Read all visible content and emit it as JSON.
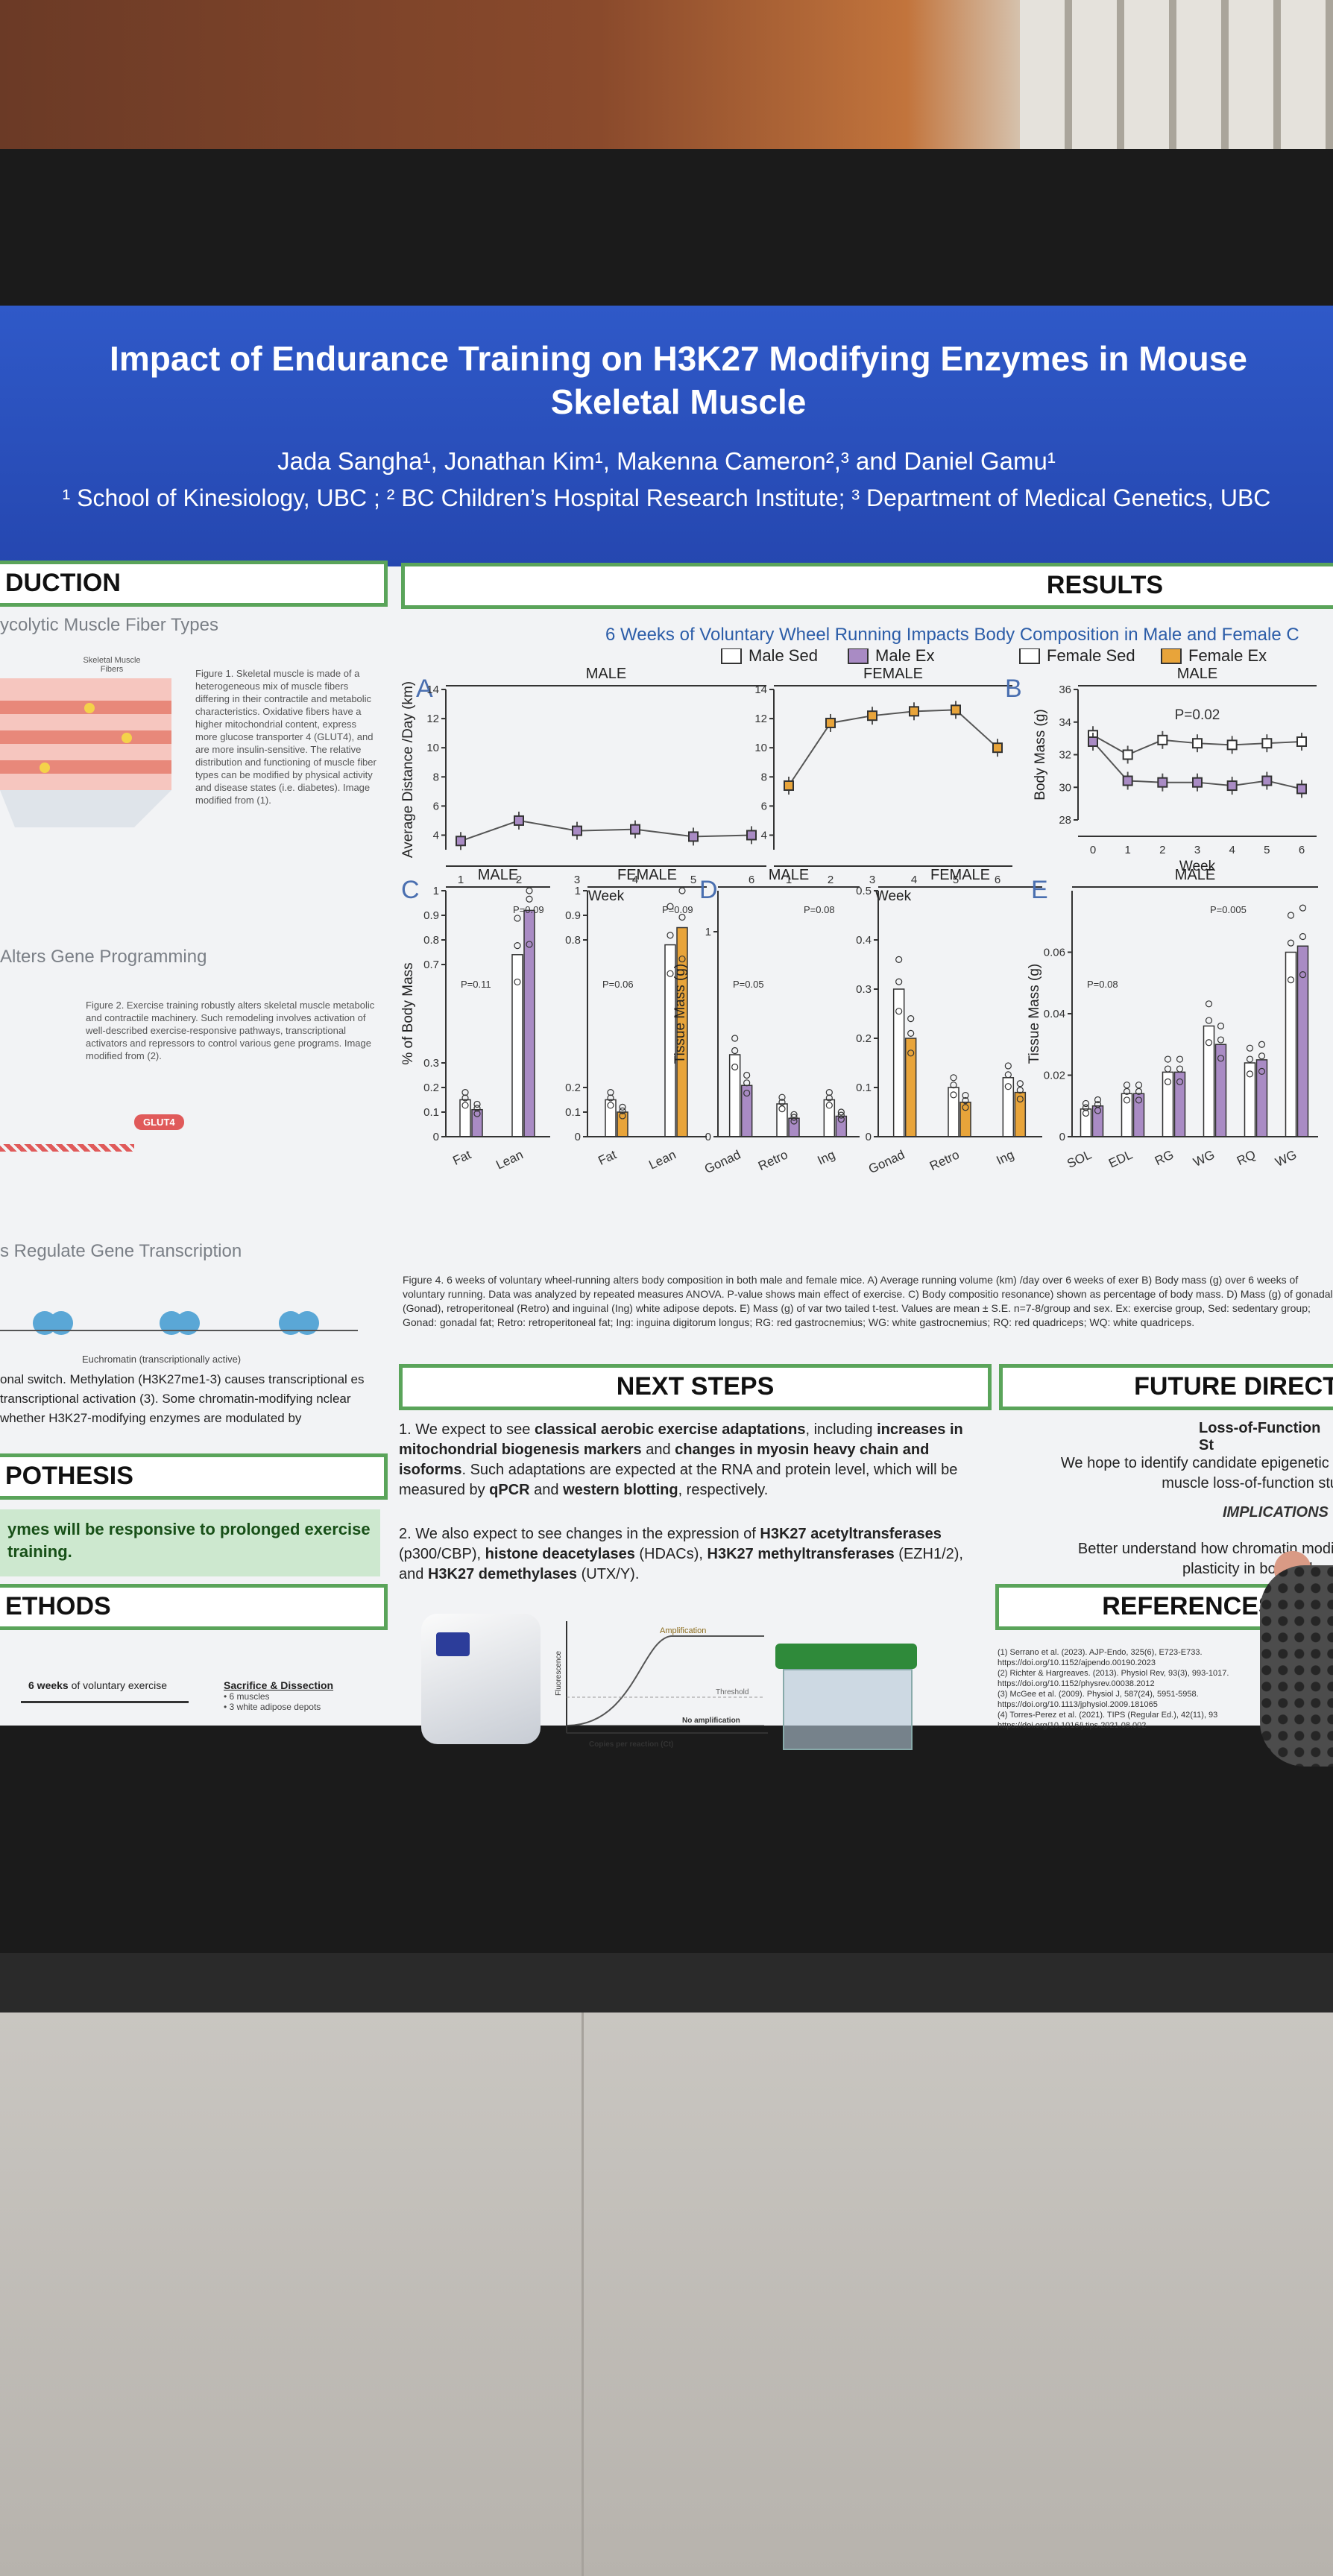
{
  "poster": {
    "title_line1": "Impact of Endurance Training on H3K27 Modifying Enzymes in Mouse",
    "title_line2": "Skeletal Muscle",
    "authors": "Jada Sangha¹, Jonathan Kim¹, Makenna Cameron²,³ and Daniel Gamu¹",
    "affiliations": "¹ School of Kinesiology, UBC ; ² BC Children’s Hospital Research Institute; ³ Department of Medical Genetics, UBC"
  },
  "intro": {
    "heading": "DUCTION",
    "sub1": "ycolytic Muscle Fiber Types",
    "fig1_caption": "Figure 1. Skeletal muscle is made of a heterogeneous mix of muscle fibers differing in their contractile and metabolic characteristics. Oxidative fibers have a higher mitochondrial content, express more glucose transporter 4 (GLUT4), and are more insulin-sensitive. The relative distribution and functioning of muscle fiber types can be modified by physical activity and disease states (i.e. diabetes). Image modified from (1).",
    "fig1_label": "Skeletal Muscle Fibers",
    "sub2": "Alters Gene Programming",
    "fig2_caption": "Figure 2. Exercise training robustly alters skeletal muscle metabolic and contractile machinery. Such remodeling involves activation of well-described exercise-responsive pathways, transcriptional activators and repressors to control various gene programs. Image modified from (2).",
    "glut4": "GLUT4",
    "sub3": "s Regulate Gene Transcription",
    "euchromatin": "Euchromatin (transcriptionally active)",
    "para": "onal switch. Methylation (H3K27me1-3) causes transcriptional es transcriptional activation (3). Some chromatin-modifying nclear whether H3K27-modifying enzymes are modulated by"
  },
  "hypothesis": {
    "heading": "POTHESIS",
    "text_line1": "ymes will be responsive to prolonged exercise",
    "text_line2": "training."
  },
  "methods": {
    "heading": "ETHODS",
    "step1_bold": "6 weeks",
    "step1_rest": " of voluntary exercise",
    "step2_title": "Sacrifice & Dissection",
    "step2_item1": "• 6 muscles",
    "step2_item2": "• 3 white adipose depots"
  },
  "results": {
    "heading": "RESULTS",
    "subtitle": "6 Weeks of Voluntary Wheel Running Impacts Body Composition in Male and Female C",
    "legend": [
      "Male Sed",
      "Male Ex",
      "Female Sed",
      "Female Ex"
    ],
    "colors": {
      "male_ex": "#a98bc4",
      "female_ex": "#e8a43a",
      "sed": "#ffffff"
    },
    "fig4_caption": "Figure 4. 6 weeks of voluntary wheel-running alters body composition in both male and female mice. A) Average running volume (km) /day over 6 weeks of exer B) Body mass (g) over 6 weeks of voluntary running. Data was analyzed by repeated measures ANOVA. P-value shows main effect of exercise. C) Body compositio resonance) shown as percentage of body mass. D) Mass (g) of gonadal (Gonad), retroperitoneal (Retro) and inguinal (Ing) white adipose depots. E) Mass (g) of var two tailed t-test. Values are mean ± S.E. n=7-8/group and sex. Ex: exercise group, Sed: sedentary group; Gonad: gonadal fat; Retro: retroperitoneal fat; Ing: inguina digitorum longus; RG: red gastrocnemius; WG: white gastrocnemius; RQ: red quadriceps; WQ: white quadriceps."
  },
  "next_steps": {
    "heading": "NEXT STEPS",
    "item1_a": "1. We expect to see ",
    "item1_b": "classical aerobic exercise adaptations",
    "item1_c": ", including ",
    "item1_d": "increases in mitochondrial biogenesis markers",
    "item1_e": " and ",
    "item1_f": "changes in myosin heavy chain and isoforms",
    "item1_g": ". Such adaptations are expected at the RNA and protein level, which will be measured by ",
    "item1_h": "qPCR",
    "item1_i": " and ",
    "item1_j": "western blotting",
    "item1_k": ", respectively.",
    "item2_a": "2. We also expect to see changes in the expression of ",
    "item2_b": "H3K27 acetyltransferases",
    "item2_c": " (p300/CBP), ",
    "item2_d": "histone deacetylases",
    "item2_e": " (HDACs), ",
    "item2_f": "H3K27 methyltransferases",
    "item2_g": " (EZH1/2), and ",
    "item2_h": "H3K27 demethylases",
    "item2_i": " (UTX/Y).",
    "qpcr_amp": "Amplification",
    "qpcr_thr": "Threshold",
    "qpcr_noamp": "No amplification",
    "qpcr_x": "Copies per reaction (Ct)",
    "qpcr_y": "Fluorescence"
  },
  "future": {
    "heading": "FUTURE DIRECT",
    "sub": "Loss-of-Function St",
    "text1": "We hope to identify candidate epigenetic r",
    "text2": "muscle loss-of-function stu",
    "implications": "IMPLICATIONS",
    "impl1": "Better understand how chromatin modif",
    "impl2": "plasticity in both h    th an"
  },
  "references": {
    "heading": "REFERENCES AI    F",
    "r1a": "(1) Serrano et al. (2023). AJP-Endo, 325(6), E723-E733.",
    "r1b": "https://doi.org/10.1152/ajpendo.00190.2023",
    "r2a": "(2) Richter & Hargreaves. (2013). Physiol Rev, 93(3), 993-1017.",
    "r2b": "https://doi.org/10.1152/physrev.00038.2012",
    "r3a": "(3) McGee et al. (2009). Physiol J, 587(24), 5951-5958.",
    "r3b": "https://doi.org/10.1113/jphysiol.2009.181065",
    "r4a": "(4) Torres-Perez et al. (2021). TIPS (Regular Ed.), 42(11), 93",
    "r4b": "https://doi.org/10.1016/j.tips.2021.08.002"
  },
  "chart_data": [
    {
      "type": "line",
      "panel": "A",
      "title": "MALE",
      "ylabel": "Average Distance /Day (km)",
      "xlabel": "Week",
      "x": [
        1,
        2,
        3,
        4,
        5,
        6
      ],
      "xlim": [
        1,
        6
      ],
      "ylim": [
        3,
        14
      ],
      "yticks": [
        4,
        6,
        8,
        10,
        12,
        14
      ],
      "series": [
        {
          "name": "Male Ex",
          "values": [
            3.6,
            5.0,
            4.3,
            4.4,
            3.9,
            4.0
          ]
        }
      ]
    },
    {
      "type": "line",
      "panel": "A",
      "title": "FEMALE",
      "xlabel": "Week",
      "x": [
        1,
        2,
        3,
        4,
        5,
        6
      ],
      "xlim": [
        1,
        6
      ],
      "ylim": [
        3,
        14
      ],
      "yticks": [
        4,
        6,
        8,
        10,
        12,
        14
      ],
      "series": [
        {
          "name": "Female Ex",
          "values": [
            7.4,
            11.7,
            12.2,
            12.5,
            12.6,
            10.0
          ]
        }
      ]
    },
    {
      "type": "line",
      "panel": "B",
      "title": "MALE",
      "ylabel": "Body Mass (g)",
      "xlabel": "Week",
      "annotation": "P=0.02",
      "x": [
        0,
        1,
        2,
        3,
        4,
        5,
        6
      ],
      "xlim": [
        0,
        6
      ],
      "ylim": [
        28,
        36
      ],
      "yticks": [
        28,
        30,
        32,
        34,
        36
      ],
      "series": [
        {
          "name": "Male Sed",
          "values": [
            33.2,
            32.0,
            32.9,
            32.7,
            32.6,
            32.7,
            32.8
          ]
        },
        {
          "name": "Male Ex",
          "values": [
            32.8,
            30.4,
            30.3,
            30.3,
            30.1,
            30.4,
            29.9
          ]
        }
      ]
    },
    {
      "type": "bar",
      "panel": "C",
      "title": "MALE",
      "ylabel": "% of Body Mass",
      "categories": [
        "Fat",
        "Lean"
      ],
      "ylim": [
        0,
        1.0
      ],
      "yticks": [
        0,
        0.1,
        0.2,
        0.3,
        0.7,
        0.8,
        0.9,
        1.0
      ],
      "annotations": [
        "P=0.11",
        "P=0.09"
      ],
      "series": [
        {
          "name": "Male Sed",
          "values": [
            0.15,
            0.74
          ]
        },
        {
          "name": "Male Ex",
          "values": [
            0.11,
            0.92
          ]
        }
      ]
    },
    {
      "type": "bar",
      "panel": "C",
      "title": "FEMALE",
      "categories": [
        "Fat",
        "Lean"
      ],
      "ylim": [
        0,
        1.0
      ],
      "yticks": [
        0,
        0.1,
        0.2,
        0.8,
        0.9,
        1.0
      ],
      "annotations": [
        "P=0.06",
        "P=0.09"
      ],
      "series": [
        {
          "name": "Female Sed",
          "values": [
            0.15,
            0.78
          ]
        },
        {
          "name": "Female Ex",
          "values": [
            0.1,
            0.85
          ]
        }
      ]
    },
    {
      "type": "bar",
      "panel": "D",
      "title": "MALE",
      "ylabel": "Tissue Mass (g)",
      "categories": [
        "Gonad",
        "Retro",
        "Ing"
      ],
      "ylim": [
        0,
        1.2
      ],
      "yticks": [
        0,
        1.0
      ],
      "annotations": [
        "P=0.05",
        "P=0.08"
      ],
      "series": [
        {
          "name": "Male Sed",
          "values": [
            0.4,
            0.16,
            0.18
          ]
        },
        {
          "name": "Male Ex",
          "values": [
            0.25,
            0.09,
            0.1
          ]
        }
      ]
    },
    {
      "type": "bar",
      "panel": "D",
      "title": "FEMALE",
      "categories": [
        "Gonad",
        "Retro",
        "Ing"
      ],
      "ylim": [
        0,
        0.5
      ],
      "yticks": [
        0,
        0.1,
        0.2,
        0.3,
        0.4,
        0.5
      ],
      "series": [
        {
          "name": "Female Sed",
          "values": [
            0.3,
            0.1,
            0.12
          ]
        },
        {
          "name": "Female Ex",
          "values": [
            0.2,
            0.07,
            0.09
          ]
        }
      ]
    },
    {
      "type": "bar",
      "panel": "E",
      "title": "MALE",
      "ylabel": "Tissue Mass (g)",
      "categories": [
        "SOL",
        "EDL",
        "RG",
        "WG",
        "RQ",
        "WG"
      ],
      "ylim": [
        0,
        0.08
      ],
      "yticks": [
        0,
        0.02,
        0.04,
        0.06
      ],
      "annotations": [
        "P=0.08",
        "P=0.005"
      ],
      "series": [
        {
          "name": "Male Sed",
          "values": [
            0.009,
            0.014,
            0.021,
            0.036,
            0.024,
            0.06
          ]
        },
        {
          "name": "Male Ex",
          "values": [
            0.01,
            0.014,
            0.021,
            0.03,
            0.025,
            0.062
          ]
        }
      ]
    }
  ]
}
